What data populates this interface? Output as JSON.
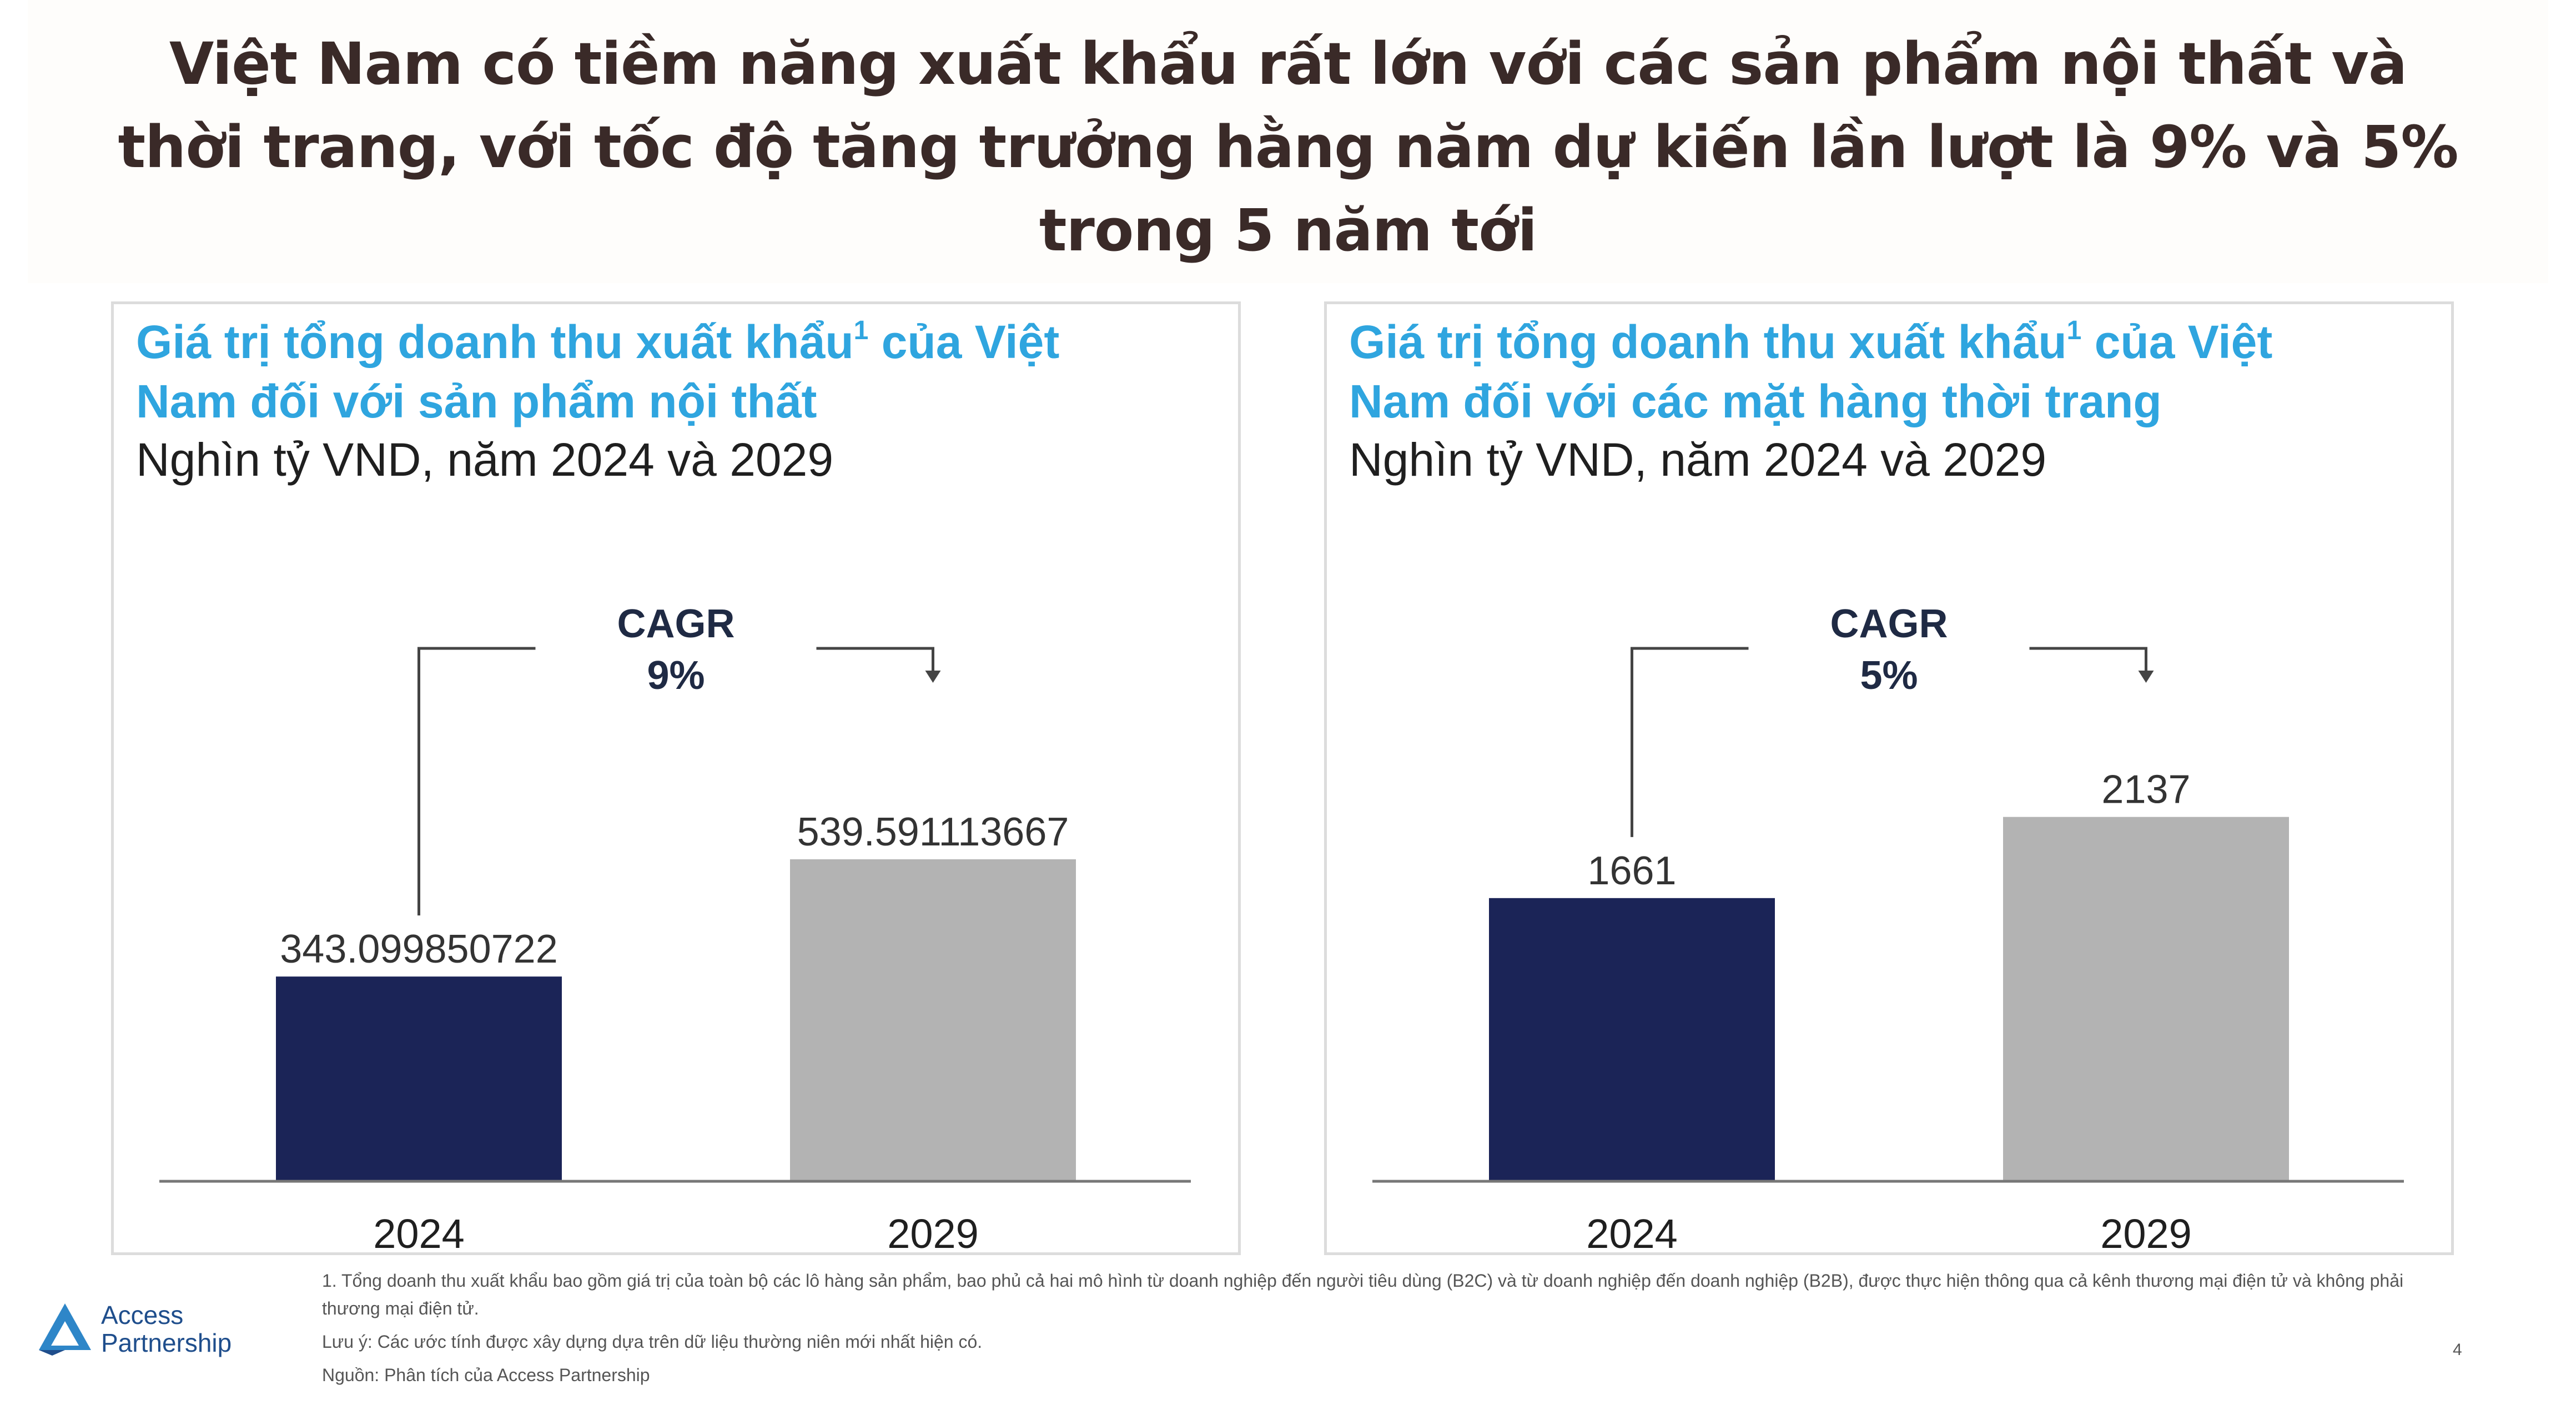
{
  "headline": {
    "line1": "Việt Nam có tiềm năng xuất khẩu rất lớn với các sản phẩm nội thất và",
    "line2": "thời trang, với tốc độ tăng trưởng hằng năm dự kiến lần lượt là 9% và 5%",
    "line3": "trong 5 năm tới"
  },
  "chart_data": [
    {
      "type": "bar",
      "title": "Giá trị tổng doanh thu xuất khẩu¹ của Việt Nam đối với sản phẩm nội thất",
      "title_line1": "Giá trị tổng doanh thu xuất khẩu",
      "title_sup": "1",
      "title_line1_suffix": " của Việt",
      "title_line2": "Nam đối với sản phẩm nội thất",
      "subtitle": "Nghìn tỷ VND, năm 2024 và 2029",
      "categories": [
        "2024",
        "2029"
      ],
      "values": [
        343.099850722,
        539.591113667
      ],
      "value_labels": [
        "343.099850722",
        "539.591113667"
      ],
      "colors": [
        "#1b2457",
        "#b3b3b3"
      ],
      "cagr_label": "CAGR",
      "cagr_value": "9%",
      "grid": false,
      "ylim": [
        0,
        800
      ]
    },
    {
      "type": "bar",
      "title": "Giá trị tổng doanh thu xuất khẩu¹ của Việt Nam đối với các mặt hàng thời trang",
      "title_line1": "Giá trị tổng doanh thu xuất khẩu",
      "title_sup": "1",
      "title_line1_suffix": " của Việt",
      "title_line2": "Nam đối với các mặt hàng thời trang",
      "subtitle": "Nghìn tỷ VND, năm 2024 và 2029",
      "categories": [
        "2024",
        "2029"
      ],
      "values": [
        1661,
        2137
      ],
      "value_labels": [
        "1661",
        "2137"
      ],
      "colors": [
        "#1b2457",
        "#b3b3b3"
      ],
      "cagr_label": "CAGR",
      "cagr_value": "5%",
      "grid": false,
      "ylim": [
        0,
        2800
      ]
    }
  ],
  "logo": {
    "line1": "Access",
    "line2": "Partnership",
    "color": "#1f4e8c"
  },
  "footnotes": {
    "note1": "1. Tổng doanh thu xuất khẩu bao gồm giá trị của toàn bộ các lô hàng sản phẩm, bao phủ cả hai mô hình từ doanh nghiệp đến người tiêu dùng (B2C) và từ doanh nghiệp đến doanh nghiệp (B2B), được thực hiện thông qua cả kênh thương mại điện tử và không phải thương mại điện tử.",
    "note2": "Lưu ý: Các ước tính được xây dựng dựa trên dữ liệu thường niên mới nhất hiện có.",
    "note3": "Nguồn: Phân tích của Access Partnership"
  },
  "page_number": "4",
  "colors": {
    "title_blue": "#2fa5df",
    "bar_dark": "#1b2457",
    "bar_grey": "#b3b3b3",
    "headline": "#3a2a28"
  }
}
